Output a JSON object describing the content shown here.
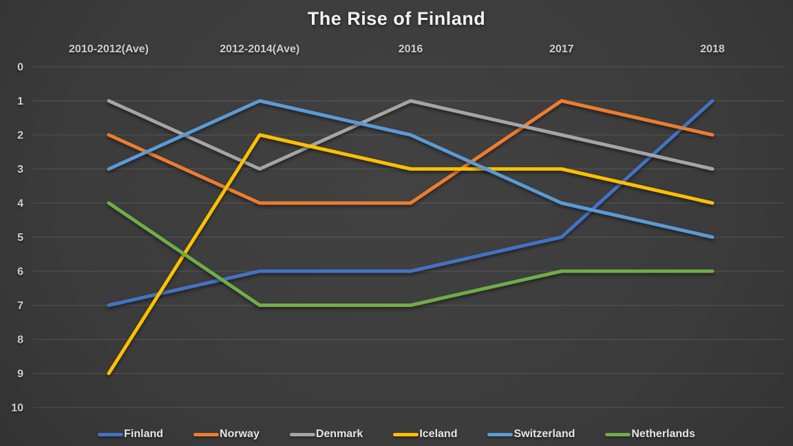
{
  "chart_data": {
    "type": "line",
    "title": "The Rise of Finland",
    "categories": [
      "2010-2012(Ave)",
      "2012-2014(Ave)",
      "2016",
      "2017",
      "2018"
    ],
    "series": [
      {
        "name": "Finland",
        "color": "#4472C4",
        "values": [
          7,
          6,
          6,
          5,
          1
        ]
      },
      {
        "name": "Norway",
        "color": "#ED7D31",
        "values": [
          2,
          4,
          4,
          1,
          2
        ]
      },
      {
        "name": "Denmark",
        "color": "#A5A5A5",
        "values": [
          1,
          3,
          1,
          2,
          3
        ]
      },
      {
        "name": "Iceland",
        "color": "#FFC000",
        "values": [
          9,
          2,
          3,
          3,
          4
        ]
      },
      {
        "name": "Switzerland",
        "color": "#5B9BD5",
        "values": [
          3,
          1,
          2,
          4,
          5
        ]
      },
      {
        "name": "Netherlands",
        "color": "#70AD47",
        "values": [
          4,
          7,
          7,
          6,
          6
        ]
      }
    ],
    "yticks": [
      0,
      1,
      2,
      3,
      4,
      5,
      6,
      7,
      8,
      9,
      10
    ],
    "ylim": [
      0,
      10
    ],
    "y_axis_inverted": true,
    "grid": "horizontal",
    "legend_position": "bottom",
    "xlabel": "",
    "ylabel": ""
  },
  "colors": {
    "background_center": "#424242",
    "background_edge": "#212121",
    "gridline": "#4e4e4e",
    "title_text": "#f2f2f2",
    "axis_text": "#cfcfcf",
    "legend_text": "#e6e6e6"
  }
}
